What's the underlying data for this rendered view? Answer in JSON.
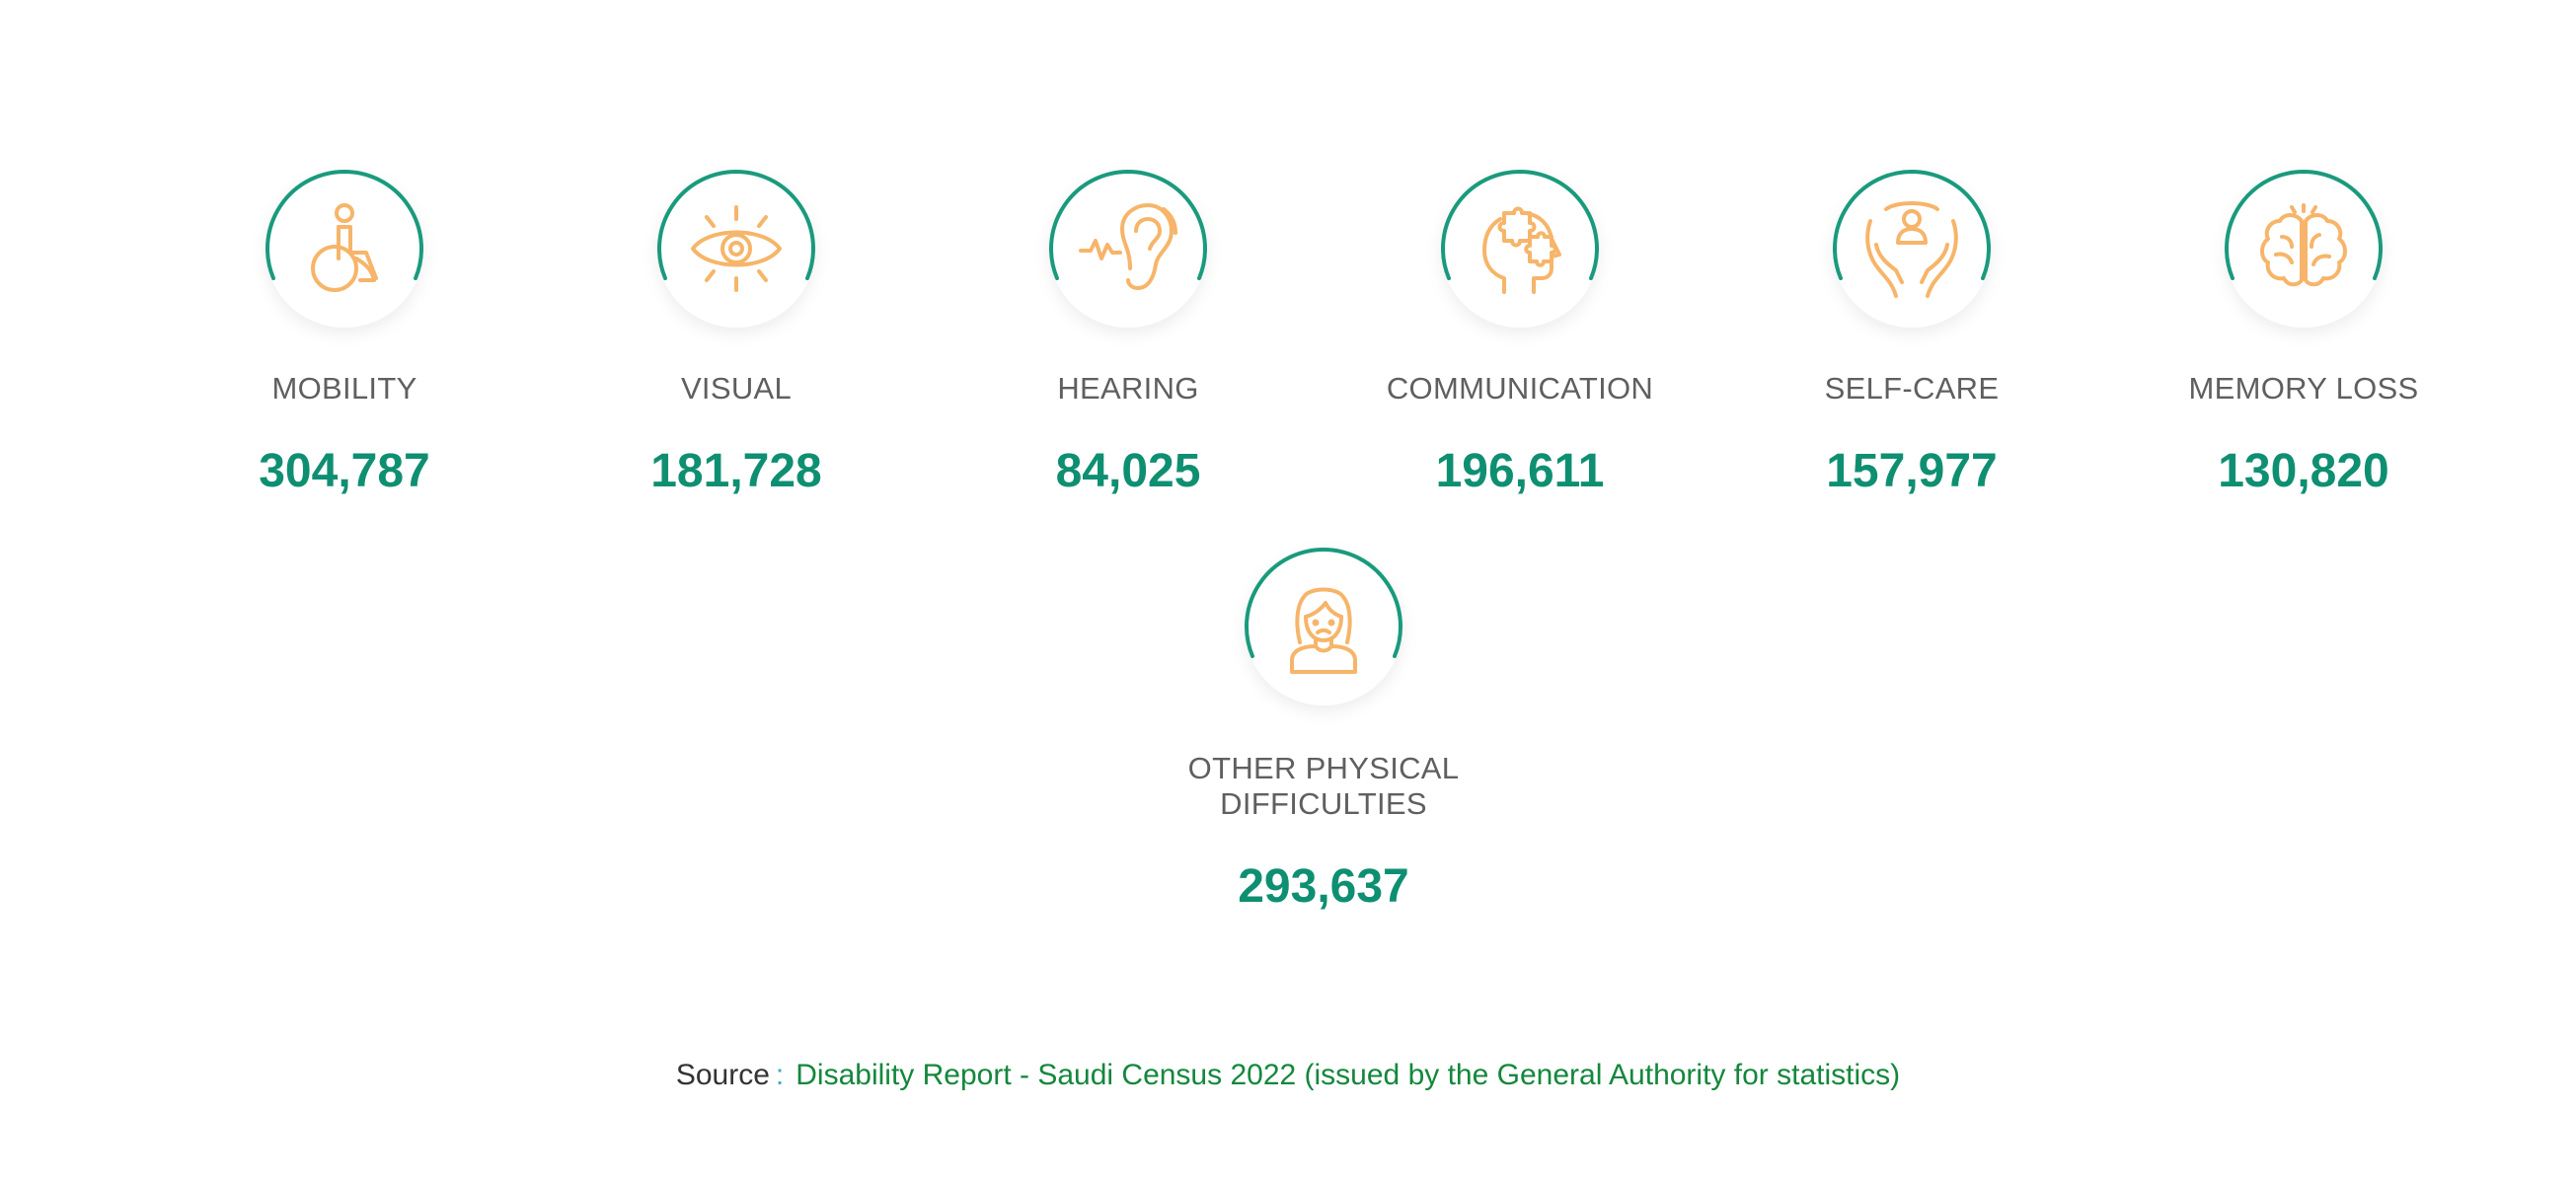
{
  "colors": {
    "accent_ring": "#1a9a7d",
    "icon": "#f6b56a",
    "value": "#0f8f72",
    "label": "#5f5f5f",
    "source_link": "#14873c"
  },
  "categories": [
    {
      "id": "mobility",
      "label": "MOBILITY",
      "value": "304,787",
      "icon": "wheelchair-icon"
    },
    {
      "id": "visual",
      "label": "VISUAL",
      "value": "181,728",
      "icon": "eye-icon"
    },
    {
      "id": "hearing",
      "label": "HEARING",
      "value": "84,025",
      "icon": "ear-icon"
    },
    {
      "id": "communication",
      "label": "COMMUNICATION",
      "value": "196,611",
      "icon": "head-puzzle-icon"
    },
    {
      "id": "self-care",
      "label": "SELF-CARE",
      "value": "157,977",
      "icon": "hands-person-icon"
    },
    {
      "id": "memory-loss",
      "label": "MEMORY LOSS",
      "value": "130,820",
      "icon": "brain-icon"
    },
    {
      "id": "other-physical",
      "label": "OTHER PHYSICAL DIFFICULTIES",
      "value": "293,637",
      "icon": "person-icon"
    }
  ],
  "source": {
    "label": "Source",
    "separator": ":",
    "text": "Disability Report - Saudi Census 2022 (issued by the General Authority for statistics)"
  }
}
